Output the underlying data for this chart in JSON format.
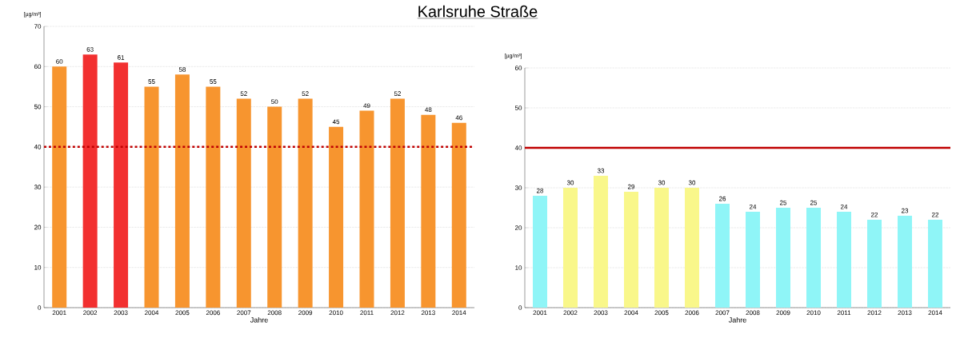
{
  "chart_data": [
    {
      "type": "bar",
      "title": "Karlsruhe Straße",
      "ylabel": "[µg/m³]",
      "xlabel": "Jahre",
      "categories": [
        "2001",
        "2002",
        "2003",
        "2004",
        "2005",
        "2006",
        "2007",
        "2008",
        "2009",
        "2010",
        "2011",
        "2012",
        "2013",
        "2014"
      ],
      "values": [
        60,
        63,
        61,
        55,
        58,
        55,
        52,
        50,
        52,
        45,
        49,
        52,
        48,
        46
      ],
      "colors": [
        "#f7952f",
        "#f23030",
        "#f23030",
        "#f7952f",
        "#f7952f",
        "#f7952f",
        "#f7952f",
        "#f7952f",
        "#f7952f",
        "#f7952f",
        "#f7952f",
        "#f7952f",
        "#f7952f",
        "#f7952f"
      ],
      "ylim": [
        0,
        70
      ],
      "yticks": [
        0,
        10,
        20,
        30,
        40,
        50,
        60,
        70
      ],
      "grid": "y",
      "data_labels": true,
      "ref_lines": [
        {
          "axis": "y",
          "value": 40,
          "color": "#c00000",
          "line_style": "dashed"
        }
      ]
    },
    {
      "type": "bar",
      "ylabel": "[µg/m³]",
      "xlabel": "Jahre",
      "categories": [
        "2001",
        "2002",
        "2003",
        "2004",
        "2005",
        "2006",
        "2007",
        "2008",
        "2009",
        "2010",
        "2011",
        "2012",
        "2013",
        "2014"
      ],
      "values": [
        28,
        30,
        33,
        29,
        30,
        30,
        26,
        24,
        25,
        25,
        24,
        22,
        23,
        22
      ],
      "colors": [
        "#8ff5f7",
        "#f9f78a",
        "#f9f78a",
        "#f9f78a",
        "#f9f78a",
        "#f9f78a",
        "#8ff5f7",
        "#8ff5f7",
        "#8ff5f7",
        "#8ff5f7",
        "#8ff5f7",
        "#8ff5f7",
        "#8ff5f7",
        "#8ff5f7"
      ],
      "ylim": [
        0,
        60
      ],
      "yticks": [
        0,
        10,
        20,
        30,
        40,
        50,
        60
      ],
      "grid": "y",
      "data_labels": true,
      "ref_lines": [
        {
          "axis": "y",
          "value": 40,
          "color": "#c00000",
          "line_style": "solid"
        }
      ]
    }
  ]
}
